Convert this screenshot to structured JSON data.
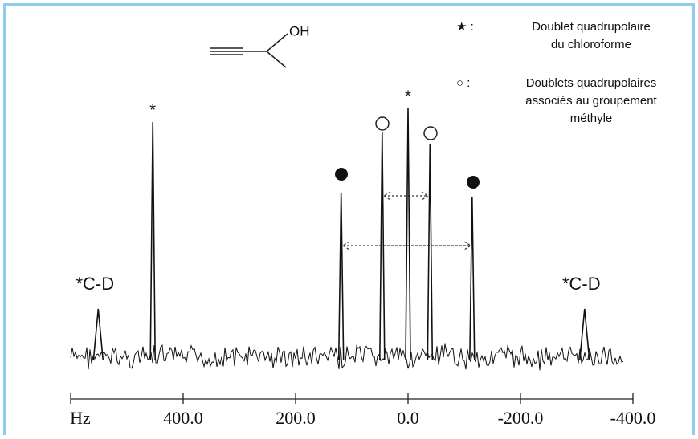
{
  "chart_data": {
    "type": "spectrum",
    "x_label": "Hz",
    "xlim": [
      600,
      -400
    ],
    "xticks": [
      {
        "value": 400,
        "label": "400.0"
      },
      {
        "value": 200,
        "label": "200.0"
      },
      {
        "value": 0,
        "label": "0.0"
      },
      {
        "value": -200,
        "label": "-200.0"
      },
      {
        "value": -400,
        "label": "-400.0"
      }
    ],
    "ylim": [
      0,
      350
    ],
    "color": "#111111",
    "x": [
      551,
      454,
      119,
      46,
      0,
      -39,
      -114,
      -314
    ],
    "values": [
      60,
      293,
      205,
      280,
      310,
      265,
      200,
      60
    ],
    "peak_labels": [
      "*C-D",
      "*",
      null,
      null,
      "*",
      null,
      null,
      "*C-D"
    ],
    "molecule_label": "OH",
    "legend": [
      {
        "symbol": "★ :",
        "lines": [
          "Doublet quadrupolaire",
          "du chloroforme"
        ]
      },
      {
        "symbol": "○ :",
        "lines": [
          "Doublets quadrupolaires",
          "associés au groupement",
          "méthyle"
        ]
      }
    ]
  }
}
